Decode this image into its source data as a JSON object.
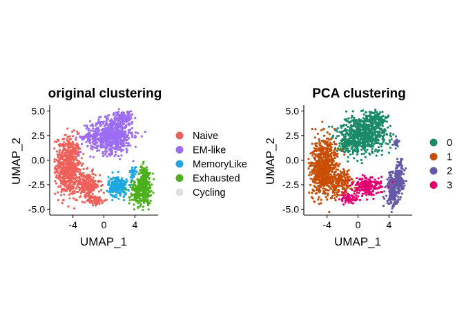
{
  "chart_data": [
    {
      "type": "scatter",
      "title": "original clustering",
      "xlabel": "UMAP_1",
      "ylabel": "UMAP_2",
      "xlim": [
        -7,
        7
      ],
      "ylim": [
        -5.6,
        5.6
      ],
      "xticks": [
        -4,
        0,
        4
      ],
      "yticks": [
        -5.0,
        -2.5,
        0.0,
        2.5,
        5.0
      ],
      "xtick_labels": [
        "-4",
        "0",
        "4"
      ],
      "ytick_labels": [
        "-5.0",
        "-2.5",
        "0.0",
        "2.5",
        "5.0"
      ],
      "grid": false,
      "legend_position": "right",
      "series": [
        {
          "name": "Naive",
          "color": "#F0605A",
          "clusters": [
            {
              "cx": -4.6,
              "cy": -0.6,
              "sx": 1.1,
              "sy": 2.0,
              "n": 650
            },
            {
              "cx": -2.2,
              "cy": -2.6,
              "sx": 1.1,
              "sy": 0.9,
              "n": 230
            },
            {
              "cx": -1.0,
              "cy": -4.1,
              "sx": 0.8,
              "sy": 0.3,
              "n": 60
            }
          ]
        },
        {
          "name": "EM-like",
          "color": "#9D6CF5",
          "clusters": [
            {
              "cx": 1.0,
              "cy": 2.5,
              "sx": 1.8,
              "sy": 1.2,
              "n": 650
            },
            {
              "cx": 2.5,
              "cy": 4.3,
              "sx": 0.8,
              "sy": 0.5,
              "n": 90
            },
            {
              "cx": -1.8,
              "cy": 2.4,
              "sx": 0.8,
              "sy": 0.6,
              "n": 60
            }
          ]
        },
        {
          "name": "MemoryLike",
          "color": "#1FA7E0",
          "clusters": [
            {
              "cx": 1.8,
              "cy": -2.7,
              "sx": 0.8,
              "sy": 0.7,
              "n": 240
            },
            {
              "cx": 3.8,
              "cy": -1.3,
              "sx": 0.3,
              "sy": 0.4,
              "n": 30
            }
          ]
        },
        {
          "name": "Exhausted",
          "color": "#4CAF1C",
          "clusters": [
            {
              "cx": 5.3,
              "cy": -2.5,
              "sx": 0.55,
              "sy": 1.3,
              "n": 270
            },
            {
              "cx": 4.2,
              "cy": -3.3,
              "sx": 0.6,
              "sy": 0.9,
              "n": 120
            }
          ]
        },
        {
          "name": "Cycling",
          "color": "#E0E0E0",
          "clusters": []
        }
      ]
    },
    {
      "type": "scatter",
      "title": "PCA clustering",
      "xlabel": "UMAP_1",
      "ylabel": "UMAP_2",
      "xlim": [
        -7,
        7
      ],
      "ylim": [
        -5.6,
        5.6
      ],
      "xticks": [
        -4,
        0,
        4
      ],
      "yticks": [
        -5.0,
        -2.5,
        0.0,
        2.5,
        5.0
      ],
      "xtick_labels": [
        "-4",
        "0",
        "4"
      ],
      "ytick_labels": [
        "-5.0",
        "-2.5",
        "0.0",
        "2.5",
        "5.0"
      ],
      "grid": false,
      "legend_position": "right",
      "series": [
        {
          "name": "0",
          "color": "#1B8A67",
          "clusters": [
            {
              "cx": 0.6,
              "cy": 2.6,
              "sx": 2.1,
              "sy": 1.3,
              "n": 700
            },
            {
              "cx": 2.3,
              "cy": 4.3,
              "sx": 0.8,
              "sy": 0.5,
              "n": 100
            },
            {
              "cx": -1.6,
              "cy": 1.6,
              "sx": 0.6,
              "sy": 0.6,
              "n": 60
            }
          ]
        },
        {
          "name": "1",
          "color": "#C94E05",
          "clusters": [
            {
              "cx": -4.4,
              "cy": -0.8,
              "sx": 1.2,
              "sy": 1.9,
              "n": 720
            },
            {
              "cx": -2.1,
              "cy": -2.4,
              "sx": 0.9,
              "sy": 0.9,
              "n": 160
            }
          ]
        },
        {
          "name": "2",
          "color": "#6559A8",
          "clusters": [
            {
              "cx": 4.5,
              "cy": -3.0,
              "sx": 0.55,
              "sy": 1.1,
              "n": 220
            },
            {
              "cx": 5.4,
              "cy": -1.6,
              "sx": 0.4,
              "sy": 1.1,
              "n": 130
            },
            {
              "cx": 4.9,
              "cy": 1.8,
              "sx": 0.3,
              "sy": 0.4,
              "n": 25
            }
          ]
        },
        {
          "name": "3",
          "color": "#E2006F",
          "clusters": [
            {
              "cx": 1.2,
              "cy": -2.6,
              "sx": 1.2,
              "sy": 0.6,
              "n": 220
            },
            {
              "cx": -1.0,
              "cy": -3.9,
              "sx": 0.8,
              "sy": 0.35,
              "n": 70
            }
          ]
        }
      ]
    }
  ]
}
